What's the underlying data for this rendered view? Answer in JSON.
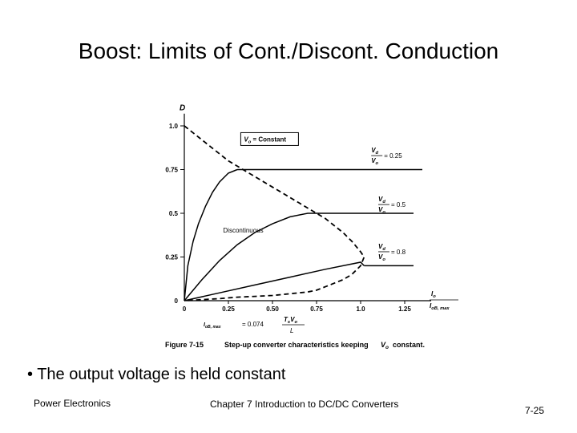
{
  "slide": {
    "title": "Boost: Limits of Cont./Discont. Conduction",
    "bullet": "• The output voltage is held constant",
    "footer_left": "Power Electronics",
    "footer_center": "Chapter 7 Introduction to DC/DC Converters",
    "footer_right": "7-25"
  },
  "figure": {
    "caption_label": "Figure 7-15",
    "caption_text": "Step-up converter characteristics keeping",
    "caption_var": "V",
    "caption_sub": "o",
    "caption_end": "constant.",
    "constant_box": "V",
    "constant_box_sub": "o",
    "constant_box_text": "= Constant",
    "region_label": "Discontinuous",
    "formula_left": "I",
    "formula_left_sub": "oB, max",
    "formula_eq": "= 0.074",
    "formula_num": "T",
    "formula_num_sub": "s",
    "formula_num2": "V",
    "formula_num2_sub": "o",
    "formula_den": "L"
  },
  "chart_data": {
    "type": "line",
    "ylabel": "D",
    "xlabel_num": "I",
    "xlabel_num_sub": "o",
    "xlabel_den": "I",
    "xlabel_den_sub": "oB, max",
    "x_ticks": [
      "0",
      "0.25",
      "0.50",
      "0.75",
      "1.0",
      "1.25"
    ],
    "x_tick_values": [
      0,
      0.25,
      0.5,
      0.75,
      1.0,
      1.25
    ],
    "y_ticks": [
      "0",
      "0.25",
      "0.5",
      "0.75",
      "1.0"
    ],
    "y_tick_values": [
      0,
      0.25,
      0.5,
      0.75,
      1.0
    ],
    "xlim": [
      0,
      1.4
    ],
    "ylim": [
      0,
      1.0
    ],
    "boundary_curve": {
      "style": "dashed",
      "x": [
        0,
        0.05,
        0.1,
        0.15,
        0.2,
        0.25,
        0.3,
        0.35,
        0.4,
        0.45,
        0.5,
        0.55,
        0.6,
        0.65,
        0.7,
        0.75,
        0.8,
        0.85,
        0.9,
        0.95,
        1.0,
        1.02,
        1.0,
        0.95,
        0.9,
        0.85,
        0.8,
        0.75,
        0.7,
        0.6,
        0.5,
        0.4,
        0.3,
        0.2,
        0.1,
        0
      ],
      "y": [
        1.0,
        0.96,
        0.92,
        0.88,
        0.84,
        0.8,
        0.77,
        0.74,
        0.71,
        0.68,
        0.65,
        0.62,
        0.59,
        0.56,
        0.53,
        0.5,
        0.47,
        0.43,
        0.39,
        0.34,
        0.28,
        0.25,
        0.2,
        0.15,
        0.12,
        0.1,
        0.08,
        0.06,
        0.05,
        0.04,
        0.03,
        0.025,
        0.02,
        0.012,
        0.006,
        0
      ]
    },
    "series": [
      {
        "name_num": "V",
        "name_num_sub": "d",
        "name_den": "V",
        "name_den_sub": "o",
        "name_value": "= 0.25",
        "discontinuous": {
          "x": [
            0,
            0.02,
            0.05,
            0.08,
            0.12,
            0.16,
            0.2,
            0.25,
            0.3
          ],
          "y": [
            0,
            0.2,
            0.34,
            0.44,
            0.54,
            0.62,
            0.68,
            0.73,
            0.75
          ]
        },
        "continuous": {
          "x": [
            0.3,
            1.35
          ],
          "y": [
            0.75,
            0.75
          ]
        }
      },
      {
        "name_num": "V",
        "name_num_sub": "d",
        "name_den": "V",
        "name_den_sub": "o",
        "name_value": "= 0.5",
        "discontinuous": {
          "x": [
            0,
            0.1,
            0.2,
            0.3,
            0.4,
            0.5,
            0.6,
            0.7,
            0.75
          ],
          "y": [
            0,
            0.12,
            0.23,
            0.32,
            0.39,
            0.44,
            0.48,
            0.5,
            0.5
          ]
        },
        "continuous": {
          "x": [
            0.75,
            1.3
          ],
          "y": [
            0.5,
            0.5
          ]
        }
      },
      {
        "name_num": "V",
        "name_num_sub": "d",
        "name_den": "V",
        "name_den_sub": "o",
        "name_value": "= 0.8",
        "discontinuous": {
          "x": [
            0,
            0.2,
            0.4,
            0.6,
            0.8,
            1.0,
            1.02
          ],
          "y": [
            0,
            0.045,
            0.09,
            0.135,
            0.18,
            0.22,
            0.2
          ]
        },
        "continuous": {
          "x": [
            1.02,
            1.3
          ],
          "y": [
            0.2,
            0.2
          ]
        }
      }
    ]
  }
}
